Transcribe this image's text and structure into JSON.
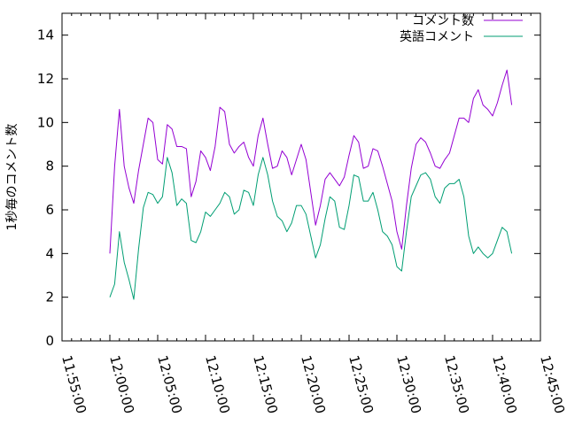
{
  "chart_data": {
    "type": "line",
    "ylabel": "1秒毎のコメント数",
    "xlabel": "",
    "title": "",
    "ylim": [
      0,
      15
    ],
    "yticks": [
      0,
      2,
      4,
      6,
      8,
      10,
      12,
      14
    ],
    "xlim": [
      "11:55:00",
      "12:45:00"
    ],
    "xticks": [
      "11:55:00",
      "12:00:00",
      "12:05:00",
      "12:10:00",
      "12:15:00",
      "12:20:00",
      "12:25:00",
      "12:30:00",
      "12:35:00",
      "12:40:00",
      "12:45:00"
    ],
    "grid": false,
    "legend_position": "top-right",
    "series": [
      {
        "name": "コメント数",
        "color": "#9400d3",
        "points": [
          [
            "12:00:00",
            4.0
          ],
          [
            "12:00:30",
            8.0
          ],
          [
            "12:01:00",
            10.6
          ],
          [
            "12:01:30",
            8.0
          ],
          [
            "12:02:00",
            7.0
          ],
          [
            "12:02:30",
            6.3
          ],
          [
            "12:03:00",
            7.8
          ],
          [
            "12:03:30",
            9.0
          ],
          [
            "12:04:00",
            10.2
          ],
          [
            "12:04:30",
            10.0
          ],
          [
            "12:05:00",
            8.3
          ],
          [
            "12:05:30",
            8.1
          ],
          [
            "12:06:00",
            9.9
          ],
          [
            "12:06:30",
            9.7
          ],
          [
            "12:07:00",
            8.9
          ],
          [
            "12:07:30",
            8.9
          ],
          [
            "12:08:00",
            8.8
          ],
          [
            "12:08:30",
            6.6
          ],
          [
            "12:09:00",
            7.3
          ],
          [
            "12:09:30",
            8.7
          ],
          [
            "12:10:00",
            8.4
          ],
          [
            "12:10:30",
            7.8
          ],
          [
            "12:11:00",
            8.9
          ],
          [
            "12:11:30",
            10.7
          ],
          [
            "12:12:00",
            10.5
          ],
          [
            "12:12:30",
            9.0
          ],
          [
            "12:13:00",
            8.6
          ],
          [
            "12:13:30",
            8.9
          ],
          [
            "12:14:00",
            9.1
          ],
          [
            "12:14:30",
            8.4
          ],
          [
            "12:15:00",
            8.0
          ],
          [
            "12:15:30",
            9.4
          ],
          [
            "12:16:00",
            10.2
          ],
          [
            "12:16:30",
            9.0
          ],
          [
            "12:17:00",
            7.9
          ],
          [
            "12:17:30",
            8.0
          ],
          [
            "12:18:00",
            8.7
          ],
          [
            "12:18:30",
            8.4
          ],
          [
            "12:19:00",
            7.6
          ],
          [
            "12:19:30",
            8.3
          ],
          [
            "12:20:00",
            9.0
          ],
          [
            "12:20:30",
            8.3
          ],
          [
            "12:21:00",
            6.8
          ],
          [
            "12:21:30",
            5.3
          ],
          [
            "12:22:00",
            6.2
          ],
          [
            "12:22:30",
            7.4
          ],
          [
            "12:23:00",
            7.7
          ],
          [
            "12:23:30",
            7.4
          ],
          [
            "12:24:00",
            7.1
          ],
          [
            "12:24:30",
            7.5
          ],
          [
            "12:25:00",
            8.5
          ],
          [
            "12:25:30",
            9.4
          ],
          [
            "12:26:00",
            9.1
          ],
          [
            "12:26:30",
            7.9
          ],
          [
            "12:27:00",
            8.0
          ],
          [
            "12:27:30",
            8.8
          ],
          [
            "12:28:00",
            8.7
          ],
          [
            "12:28:30",
            8.0
          ],
          [
            "12:29:00",
            7.2
          ],
          [
            "12:29:30",
            6.4
          ],
          [
            "12:30:00",
            5.0
          ],
          [
            "12:30:30",
            4.2
          ],
          [
            "12:31:00",
            6.2
          ],
          [
            "12:31:30",
            7.9
          ],
          [
            "12:32:00",
            9.0
          ],
          [
            "12:32:30",
            9.3
          ],
          [
            "12:33:00",
            9.1
          ],
          [
            "12:33:30",
            8.6
          ],
          [
            "12:34:00",
            8.0
          ],
          [
            "12:34:30",
            7.9
          ],
          [
            "12:35:00",
            8.3
          ],
          [
            "12:35:30",
            8.6
          ],
          [
            "12:36:00",
            9.4
          ],
          [
            "12:36:30",
            10.2
          ],
          [
            "12:37:00",
            10.2
          ],
          [
            "12:37:30",
            10.0
          ],
          [
            "12:38:00",
            11.1
          ],
          [
            "12:38:30",
            11.5
          ],
          [
            "12:39:00",
            10.8
          ],
          [
            "12:39:30",
            10.6
          ],
          [
            "12:40:00",
            10.3
          ],
          [
            "12:40:30",
            10.9
          ],
          [
            "12:41:00",
            11.7
          ],
          [
            "12:41:30",
            12.4
          ],
          [
            "12:42:00",
            10.8
          ]
        ]
      },
      {
        "name": "英語コメント",
        "color": "#009e73",
        "points": [
          [
            "12:00:00",
            2.0
          ],
          [
            "12:00:30",
            2.6
          ],
          [
            "12:01:00",
            5.0
          ],
          [
            "12:01:30",
            3.6
          ],
          [
            "12:02:00",
            2.8
          ],
          [
            "12:02:30",
            1.9
          ],
          [
            "12:03:00",
            4.2
          ],
          [
            "12:03:30",
            6.1
          ],
          [
            "12:04:00",
            6.8
          ],
          [
            "12:04:30",
            6.7
          ],
          [
            "12:05:00",
            6.3
          ],
          [
            "12:05:30",
            6.6
          ],
          [
            "12:06:00",
            8.4
          ],
          [
            "12:06:30",
            7.7
          ],
          [
            "12:07:00",
            6.2
          ],
          [
            "12:07:30",
            6.5
          ],
          [
            "12:08:00",
            6.3
          ],
          [
            "12:08:30",
            4.6
          ],
          [
            "12:09:00",
            4.5
          ],
          [
            "12:09:30",
            5.0
          ],
          [
            "12:10:00",
            5.9
          ],
          [
            "12:10:30",
            5.7
          ],
          [
            "12:11:00",
            6.0
          ],
          [
            "12:11:30",
            6.3
          ],
          [
            "12:12:00",
            6.8
          ],
          [
            "12:12:30",
            6.6
          ],
          [
            "12:13:00",
            5.8
          ],
          [
            "12:13:30",
            6.0
          ],
          [
            "12:14:00",
            6.9
          ],
          [
            "12:14:30",
            6.8
          ],
          [
            "12:15:00",
            6.2
          ],
          [
            "12:15:30",
            7.6
          ],
          [
            "12:16:00",
            8.4
          ],
          [
            "12:16:30",
            7.6
          ],
          [
            "12:17:00",
            6.4
          ],
          [
            "12:17:30",
            5.7
          ],
          [
            "12:18:00",
            5.5
          ],
          [
            "12:18:30",
            5.0
          ],
          [
            "12:19:00",
            5.4
          ],
          [
            "12:19:30",
            6.2
          ],
          [
            "12:20:00",
            6.2
          ],
          [
            "12:20:30",
            5.8
          ],
          [
            "12:21:00",
            4.8
          ],
          [
            "12:21:30",
            3.8
          ],
          [
            "12:22:00",
            4.4
          ],
          [
            "12:22:30",
            5.6
          ],
          [
            "12:23:00",
            6.6
          ],
          [
            "12:23:30",
            6.4
          ],
          [
            "12:24:00",
            5.2
          ],
          [
            "12:24:30",
            5.1
          ],
          [
            "12:25:00",
            6.2
          ],
          [
            "12:25:30",
            7.6
          ],
          [
            "12:26:00",
            7.5
          ],
          [
            "12:26:30",
            6.4
          ],
          [
            "12:27:00",
            6.4
          ],
          [
            "12:27:30",
            6.8
          ],
          [
            "12:28:00",
            6.0
          ],
          [
            "12:28:30",
            5.0
          ],
          [
            "12:29:00",
            4.8
          ],
          [
            "12:29:30",
            4.4
          ],
          [
            "12:30:00",
            3.4
          ],
          [
            "12:30:30",
            3.2
          ],
          [
            "12:31:00",
            5.0
          ],
          [
            "12:31:30",
            6.6
          ],
          [
            "12:32:00",
            7.1
          ],
          [
            "12:32:30",
            7.6
          ],
          [
            "12:33:00",
            7.7
          ],
          [
            "12:33:30",
            7.4
          ],
          [
            "12:34:00",
            6.6
          ],
          [
            "12:34:30",
            6.3
          ],
          [
            "12:35:00",
            7.0
          ],
          [
            "12:35:30",
            7.2
          ],
          [
            "12:36:00",
            7.2
          ],
          [
            "12:36:30",
            7.4
          ],
          [
            "12:37:00",
            6.6
          ],
          [
            "12:37:30",
            4.8
          ],
          [
            "12:38:00",
            4.0
          ],
          [
            "12:38:30",
            4.3
          ],
          [
            "12:39:00",
            4.0
          ],
          [
            "12:39:30",
            3.8
          ],
          [
            "12:40:00",
            4.0
          ],
          [
            "12:40:30",
            4.6
          ],
          [
            "12:41:00",
            5.2
          ],
          [
            "12:41:30",
            5.0
          ],
          [
            "12:42:00",
            4.0
          ]
        ]
      }
    ]
  }
}
